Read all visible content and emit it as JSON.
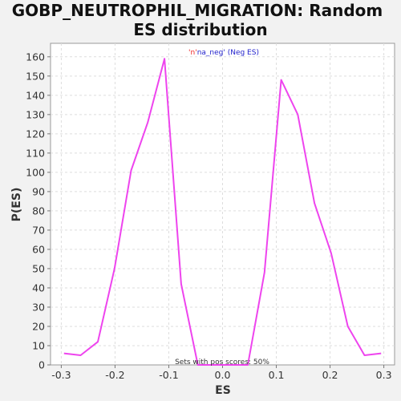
{
  "chart_data": {
    "type": "line",
    "title_lines": [
      "GOBP_NEUTROPHIL_MIGRATION: Random",
      "ES distribution"
    ],
    "xlabel": "ES",
    "ylabel": "P(ES)",
    "xlim": [
      -0.32,
      0.32
    ],
    "ylim": [
      0,
      167
    ],
    "xticks": [
      -0.3,
      -0.2,
      -0.1,
      0.0,
      0.1,
      0.2,
      0.3
    ],
    "xtick_labels": [
      "-0.3",
      "-0.2",
      "-0.1",
      "0.0",
      "0.1",
      "0.2",
      "0.3"
    ],
    "yticks": [
      0,
      10,
      20,
      30,
      40,
      50,
      60,
      70,
      80,
      90,
      100,
      110,
      120,
      130,
      140,
      150,
      160
    ],
    "ytick_labels": [
      "0",
      "10",
      "20",
      "30",
      "40",
      "50",
      "60",
      "70",
      "80",
      "90",
      "100",
      "110",
      "120",
      "130",
      "140",
      "150",
      "160"
    ],
    "grid": true,
    "legend": {
      "position": "top-center",
      "prefix": "'n'",
      "text": "na_neg' (Neg ES)"
    },
    "annotation": "Sets with pos scores: 50%",
    "series": [
      {
        "color": "#ee44ee",
        "x": [
          -0.295,
          -0.264,
          -0.232,
          -0.201,
          -0.17,
          -0.139,
          -0.108,
          -0.077,
          -0.046,
          -0.015,
          0.016,
          0.047,
          0.078,
          0.109,
          0.14,
          0.171,
          0.202,
          0.233,
          0.264,
          0.295
        ],
        "y": [
          6,
          5,
          12,
          50,
          101,
          126,
          159,
          42,
          0,
          0,
          0,
          0,
          48,
          148,
          130,
          84,
          58,
          20,
          5,
          6
        ]
      }
    ]
  }
}
